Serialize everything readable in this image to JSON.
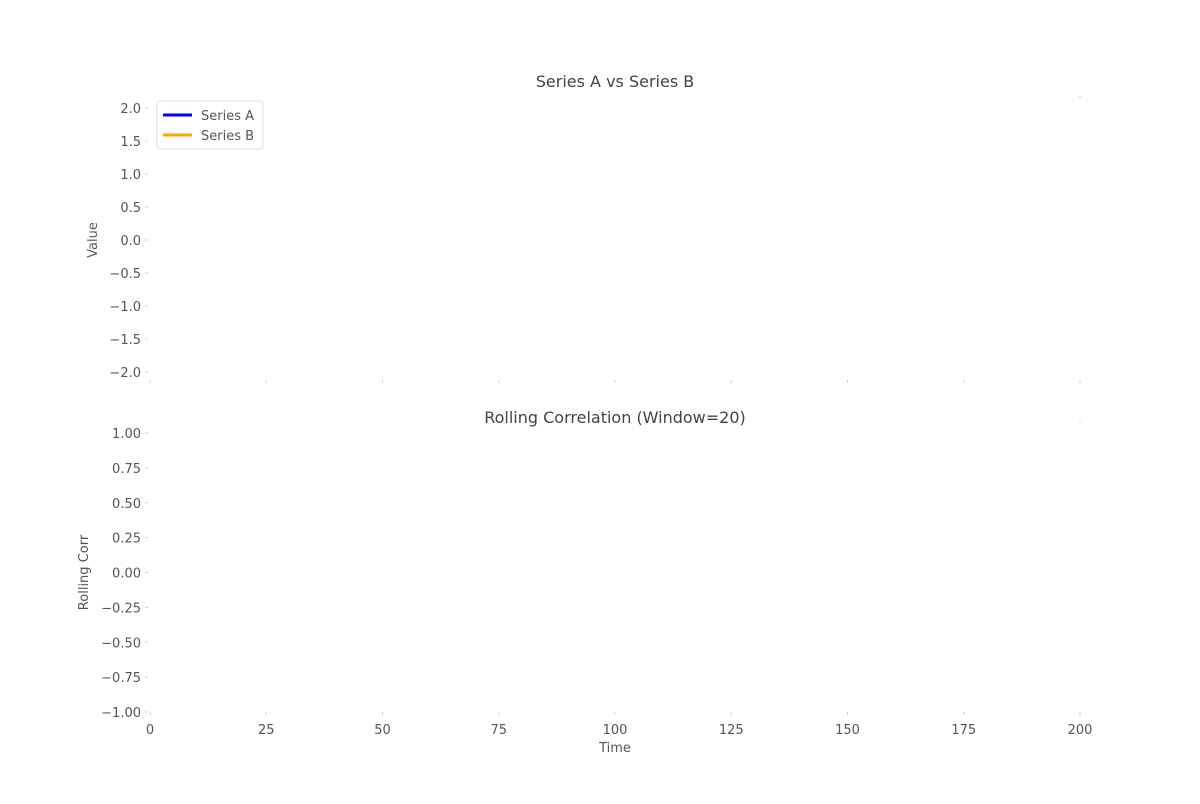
{
  "chart_data": [
    {
      "type": "line",
      "title": "Series A vs Series B",
      "xlabel": "",
      "ylabel": "Value",
      "xlim": [
        0,
        200
      ],
      "ylim": [
        -2.0,
        2.0
      ],
      "x_ticks": [
        0,
        25,
        50,
        75,
        100,
        125,
        150,
        175,
        200
      ],
      "x_tick_labels_visible": false,
      "y_ticks": [
        2.0,
        1.5,
        1.0,
        0.5,
        0.0,
        -0.5,
        -1.0,
        -1.5,
        -2.0
      ],
      "y_tick_labels": [
        "2.0",
        "1.5",
        "1.0",
        "0.5",
        "0.0",
        "−0.5",
        "−1.0",
        "−1.5",
        "−2.0"
      ],
      "grid": false,
      "legend": "top-left",
      "series": [
        {
          "name": "Series A",
          "color": "#0000ff",
          "x": [],
          "values": []
        },
        {
          "name": "Series B",
          "color": "#ffa500",
          "x": [],
          "values": []
        }
      ]
    },
    {
      "type": "line",
      "title": "Rolling Correlation (Window=20)",
      "xlabel": "Time",
      "ylabel": "Rolling Corr",
      "xlim": [
        0,
        200
      ],
      "ylim": [
        -1.0,
        1.0
      ],
      "x_ticks": [
        0,
        25,
        50,
        75,
        100,
        125,
        150,
        175,
        200
      ],
      "x_tick_labels": [
        "0",
        "25",
        "50",
        "75",
        "100",
        "125",
        "150",
        "175",
        "200"
      ],
      "y_ticks": [
        1.0,
        0.75,
        0.5,
        0.25,
        0.0,
        -0.25,
        -0.5,
        -0.75,
        -1.0
      ],
      "y_tick_labels": [
        "1.00",
        "0.75",
        "0.50",
        "0.25",
        "0.00",
        "−0.25",
        "−0.50",
        "−0.75",
        "−1.00"
      ],
      "grid": false,
      "series": []
    }
  ]
}
